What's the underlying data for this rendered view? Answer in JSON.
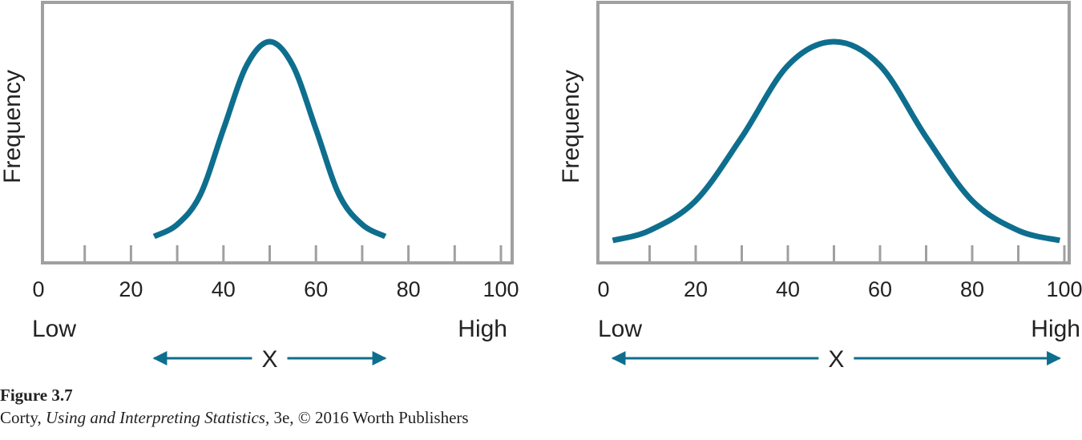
{
  "colors": {
    "curve": "#0e6e8e",
    "axis": "#a0a0a0",
    "text": "#222222"
  },
  "chart_data": [
    {
      "type": "line",
      "ylabel": "Frequency",
      "xlim": [
        0,
        100
      ],
      "x_ticks": [
        "0",
        "20",
        "40",
        "60",
        "80",
        "100"
      ],
      "x_end_labels": {
        "low": "Low",
        "high": "High"
      },
      "x_variable_label": "X",
      "x_arrow_span": [
        25,
        75
      ],
      "series": [
        {
          "x": [
            25,
            30,
            35,
            40,
            45,
            50,
            55,
            60,
            65,
            70,
            75
          ],
          "y": [
            0.02,
            0.08,
            0.23,
            0.56,
            0.88,
            1.0,
            0.88,
            0.56,
            0.23,
            0.08,
            0.02
          ]
        }
      ]
    },
    {
      "type": "line",
      "ylabel": "Frequency",
      "xlim": [
        0,
        100
      ],
      "x_ticks": [
        "0",
        "20",
        "40",
        "60",
        "80",
        "100"
      ],
      "x_end_labels": {
        "low": "Low",
        "high": "High"
      },
      "x_variable_label": "X",
      "x_arrow_span": [
        2,
        99
      ],
      "series": [
        {
          "x": [
            2,
            10,
            20,
            30,
            40,
            50,
            60,
            70,
            80,
            90,
            99
          ],
          "y": [
            0.0,
            0.05,
            0.2,
            0.52,
            0.88,
            1.0,
            0.88,
            0.52,
            0.2,
            0.05,
            0.0
          ]
        }
      ]
    }
  ],
  "caption": {
    "figure_number": "Figure 3.7",
    "author": "Corty, ",
    "book_title": "Using and Interpreting Statistics,",
    "rest": " 3e, © 2016 Worth Publishers"
  }
}
